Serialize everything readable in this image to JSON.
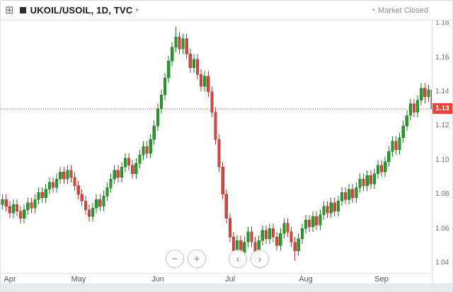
{
  "header": {
    "title": "UKOIL/USOIL, 1D, TVC",
    "symbol": "UKOIL/USOIL",
    "interval": "1D",
    "exchange": "TVC",
    "dropdown_caret": "▾",
    "market_status": "Market Closed",
    "market_status_dot": "•"
  },
  "icons": {
    "grid": "⊞"
  },
  "controls": {
    "zoom_out": "−",
    "zoom_in": "+",
    "pan_left": "‹",
    "pan_right": "›"
  },
  "colors": {
    "up_fill": "#2b9a2e",
    "up_border": "#1d7a21",
    "down_fill": "#cb4a42",
    "down_border": "#a93a33",
    "price_line": "#ef4438",
    "badge_bg": "#ef4438",
    "badge_text": "#ffffff",
    "axis_text": "#6b6f79",
    "month_text": "#55585f"
  },
  "chart_data": {
    "type": "candlestick",
    "symbol": "UKOIL/USOIL",
    "interval": "1D",
    "exchange": "TVC",
    "grid": "off",
    "ohlc_format": [
      "open",
      "high",
      "low",
      "close"
    ],
    "x_labels": [
      "Apr",
      "May",
      "Jun",
      "Jul",
      "Aug",
      "Sep"
    ],
    "month_start_indices": [
      2,
      21,
      43,
      63,
      84,
      105
    ],
    "y_ticks": [
      "1.18",
      "1.16",
      "1.14",
      "1.12",
      "1.10",
      "1.08",
      "1.06",
      "1.04"
    ],
    "y_tick_values": [
      1.18,
      1.16,
      1.14,
      1.12,
      1.1,
      1.08,
      1.06,
      1.04
    ],
    "ylim": [
      1.034,
      1.182
    ],
    "last_price": 1.13,
    "last_price_label": "1.13",
    "candles": [
      [
        1.074,
        1.08,
        1.071,
        1.077
      ],
      [
        1.077,
        1.08,
        1.07,
        1.073
      ],
      [
        1.073,
        1.076,
        1.066,
        1.069
      ],
      [
        1.069,
        1.077,
        1.066,
        1.074
      ],
      [
        1.074,
        1.077,
        1.067,
        1.07
      ],
      [
        1.07,
        1.073,
        1.063,
        1.066
      ],
      [
        1.066,
        1.074,
        1.063,
        1.071
      ],
      [
        1.071,
        1.078,
        1.068,
        1.075
      ],
      [
        1.075,
        1.078,
        1.069,
        1.072
      ],
      [
        1.072,
        1.08,
        1.069,
        1.077
      ],
      [
        1.077,
        1.084,
        1.074,
        1.081
      ],
      [
        1.081,
        1.084,
        1.075,
        1.078
      ],
      [
        1.078,
        1.086,
        1.075,
        1.083
      ],
      [
        1.083,
        1.09,
        1.08,
        1.087
      ],
      [
        1.087,
        1.09,
        1.081,
        1.084
      ],
      [
        1.084,
        1.092,
        1.081,
        1.089
      ],
      [
        1.089,
        1.096,
        1.086,
        1.093
      ],
      [
        1.093,
        1.096,
        1.086,
        1.089
      ],
      [
        1.089,
        1.097,
        1.086,
        1.094
      ],
      [
        1.094,
        1.097,
        1.087,
        1.09
      ],
      [
        1.09,
        1.093,
        1.082,
        1.085
      ],
      [
        1.085,
        1.088,
        1.077,
        1.08
      ],
      [
        1.08,
        1.083,
        1.073,
        1.076
      ],
      [
        1.076,
        1.079,
        1.068,
        1.071
      ],
      [
        1.071,
        1.074,
        1.064,
        1.067
      ],
      [
        1.067,
        1.075,
        1.064,
        1.072
      ],
      [
        1.072,
        1.08,
        1.069,
        1.077
      ],
      [
        1.077,
        1.08,
        1.07,
        1.073
      ],
      [
        1.073,
        1.082,
        1.07,
        1.079
      ],
      [
        1.079,
        1.087,
        1.076,
        1.084
      ],
      [
        1.084,
        1.092,
        1.081,
        1.089
      ],
      [
        1.089,
        1.097,
        1.086,
        1.094
      ],
      [
        1.094,
        1.097,
        1.087,
        1.09
      ],
      [
        1.09,
        1.099,
        1.087,
        1.096
      ],
      [
        1.096,
        1.104,
        1.093,
        1.101
      ],
      [
        1.101,
        1.104,
        1.094,
        1.097
      ],
      [
        1.097,
        1.1,
        1.089,
        1.092
      ],
      [
        1.092,
        1.101,
        1.089,
        1.098
      ],
      [
        1.098,
        1.106,
        1.095,
        1.103
      ],
      [
        1.103,
        1.111,
        1.1,
        1.108
      ],
      [
        1.108,
        1.111,
        1.101,
        1.104
      ],
      [
        1.104,
        1.115,
        1.101,
        1.112
      ],
      [
        1.112,
        1.123,
        1.109,
        1.12
      ],
      [
        1.12,
        1.133,
        1.117,
        1.13
      ],
      [
        1.13,
        1.141,
        1.127,
        1.138
      ],
      [
        1.138,
        1.151,
        1.135,
        1.148
      ],
      [
        1.148,
        1.161,
        1.145,
        1.158
      ],
      [
        1.158,
        1.169,
        1.155,
        1.166
      ],
      [
        1.166,
        1.178,
        1.163,
        1.172
      ],
      [
        1.172,
        1.175,
        1.162,
        1.165
      ],
      [
        1.165,
        1.174,
        1.162,
        1.171
      ],
      [
        1.171,
        1.174,
        1.159,
        1.162
      ],
      [
        1.162,
        1.165,
        1.151,
        1.154
      ],
      [
        1.154,
        1.162,
        1.151,
        1.159
      ],
      [
        1.159,
        1.162,
        1.147,
        1.15
      ],
      [
        1.15,
        1.153,
        1.14,
        1.143
      ],
      [
        1.143,
        1.152,
        1.14,
        1.149
      ],
      [
        1.149,
        1.152,
        1.137,
        1.14
      ],
      [
        1.14,
        1.143,
        1.125,
        1.128
      ],
      [
        1.128,
        1.131,
        1.109,
        1.112
      ],
      [
        1.112,
        1.115,
        1.093,
        1.096
      ],
      [
        1.096,
        1.099,
        1.077,
        1.08
      ],
      [
        1.08,
        1.083,
        1.063,
        1.066
      ],
      [
        1.066,
        1.069,
        1.052,
        1.055
      ],
      [
        1.055,
        1.058,
        1.042,
        1.047
      ],
      [
        1.047,
        1.056,
        1.044,
        1.053
      ],
      [
        1.053,
        1.056,
        1.041,
        1.046
      ],
      [
        1.046,
        1.055,
        1.043,
        1.052
      ],
      [
        1.052,
        1.061,
        1.049,
        1.058
      ],
      [
        1.058,
        1.061,
        1.049,
        1.052
      ],
      [
        1.052,
        1.055,
        1.04,
        1.046
      ],
      [
        1.046,
        1.056,
        1.043,
        1.053
      ],
      [
        1.053,
        1.062,
        1.05,
        1.059
      ],
      [
        1.059,
        1.062,
        1.051,
        1.054
      ],
      [
        1.054,
        1.063,
        1.051,
        1.06
      ],
      [
        1.06,
        1.063,
        1.052,
        1.055
      ],
      [
        1.055,
        1.058,
        1.047,
        1.05
      ],
      [
        1.05,
        1.06,
        1.047,
        1.057
      ],
      [
        1.057,
        1.066,
        1.054,
        1.063
      ],
      [
        1.063,
        1.066,
        1.055,
        1.058
      ],
      [
        1.058,
        1.061,
        1.049,
        1.052
      ],
      [
        1.052,
        1.055,
        1.041,
        1.047
      ],
      [
        1.047,
        1.057,
        1.044,
        1.054
      ],
      [
        1.054,
        1.063,
        1.051,
        1.06
      ],
      [
        1.06,
        1.068,
        1.057,
        1.065
      ],
      [
        1.065,
        1.068,
        1.058,
        1.061
      ],
      [
        1.061,
        1.07,
        1.058,
        1.067
      ],
      [
        1.067,
        1.07,
        1.059,
        1.062
      ],
      [
        1.062,
        1.071,
        1.059,
        1.068
      ],
      [
        1.068,
        1.076,
        1.065,
        1.073
      ],
      [
        1.073,
        1.076,
        1.066,
        1.069
      ],
      [
        1.069,
        1.078,
        1.066,
        1.075
      ],
      [
        1.075,
        1.078,
        1.067,
        1.07
      ],
      [
        1.07,
        1.079,
        1.067,
        1.076
      ],
      [
        1.076,
        1.084,
        1.073,
        1.081
      ],
      [
        1.081,
        1.084,
        1.074,
        1.077
      ],
      [
        1.077,
        1.086,
        1.074,
        1.083
      ],
      [
        1.083,
        1.086,
        1.075,
        1.078
      ],
      [
        1.078,
        1.087,
        1.075,
        1.084
      ],
      [
        1.084,
        1.092,
        1.081,
        1.089
      ],
      [
        1.089,
        1.092,
        1.082,
        1.085
      ],
      [
        1.085,
        1.094,
        1.082,
        1.091
      ],
      [
        1.091,
        1.094,
        1.083,
        1.086
      ],
      [
        1.086,
        1.095,
        1.083,
        1.092
      ],
      [
        1.092,
        1.1,
        1.089,
        1.097
      ],
      [
        1.097,
        1.1,
        1.09,
        1.093
      ],
      [
        1.093,
        1.102,
        1.09,
        1.099
      ],
      [
        1.099,
        1.108,
        1.096,
        1.105
      ],
      [
        1.105,
        1.114,
        1.102,
        1.111
      ],
      [
        1.111,
        1.114,
        1.103,
        1.106
      ],
      [
        1.106,
        1.116,
        1.103,
        1.113
      ],
      [
        1.113,
        1.123,
        1.11,
        1.12
      ],
      [
        1.12,
        1.129,
        1.117,
        1.126
      ],
      [
        1.126,
        1.136,
        1.123,
        1.133
      ],
      [
        1.133,
        1.136,
        1.125,
        1.128
      ],
      [
        1.128,
        1.138,
        1.125,
        1.135
      ],
      [
        1.135,
        1.145,
        1.132,
        1.142
      ],
      [
        1.142,
        1.145,
        1.133,
        1.137
      ],
      [
        1.137,
        1.144,
        1.134,
        1.141
      ],
      [
        1.141,
        1.144,
        1.127,
        1.13
      ]
    ]
  }
}
